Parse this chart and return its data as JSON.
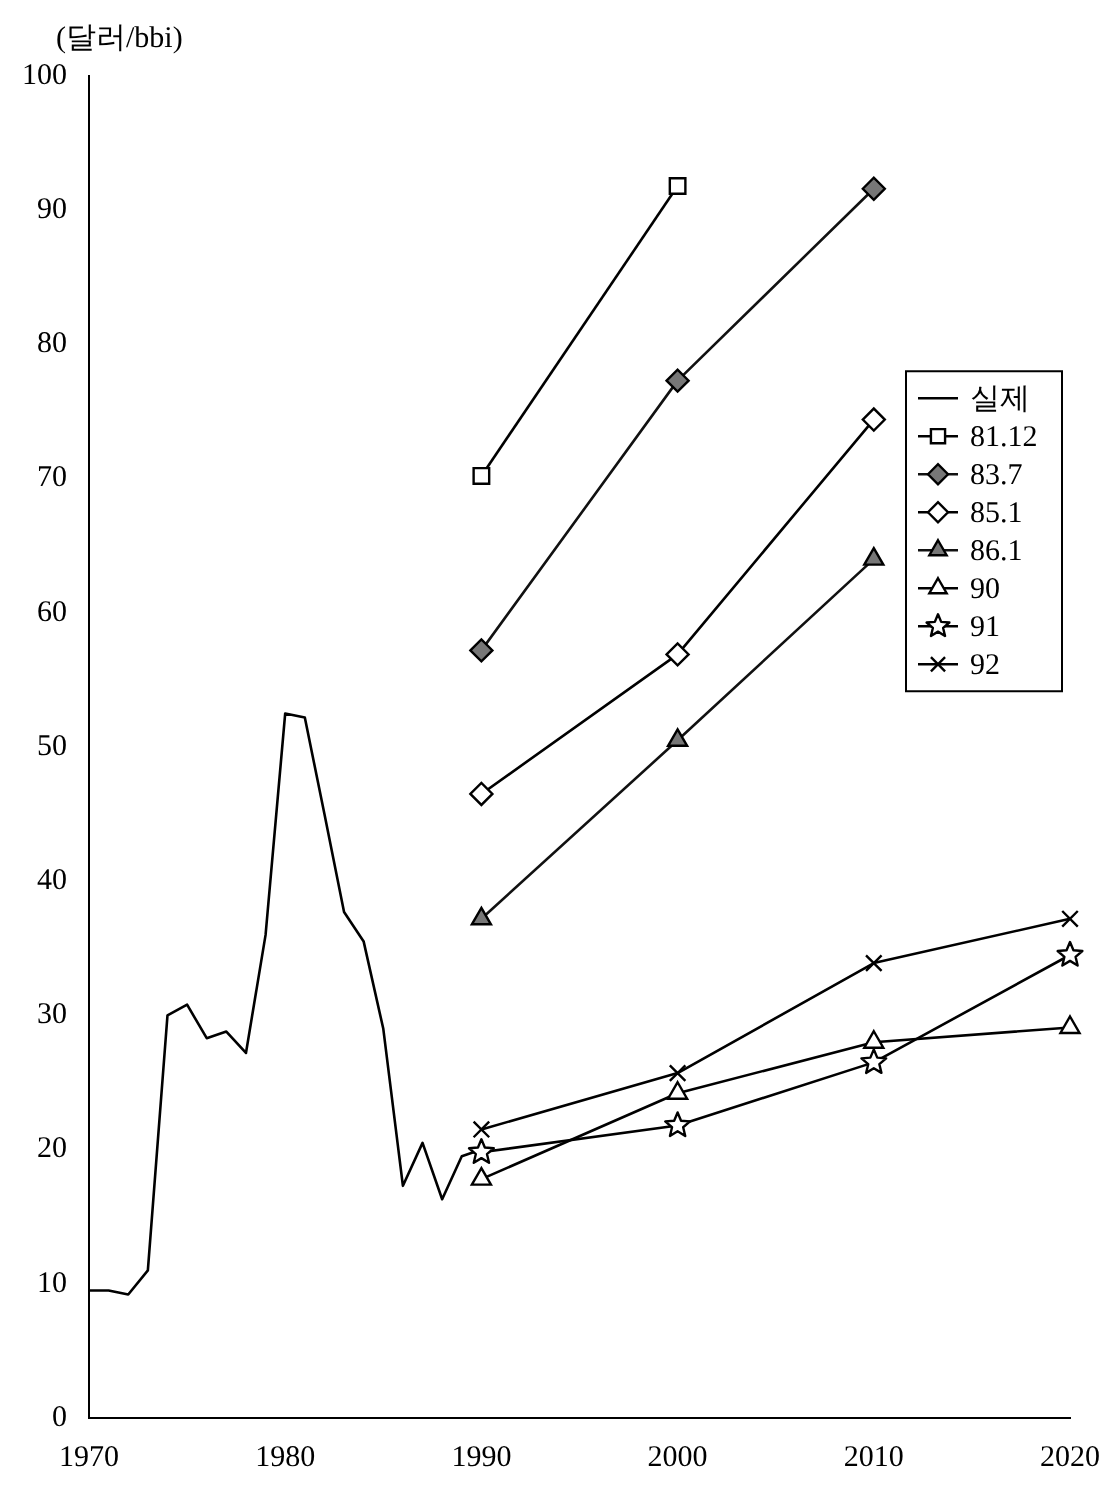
{
  "chart_data": {
    "type": "line",
    "ylabel": "(달러/bbi)",
    "xlim": [
      1970,
      2020
    ],
    "xticks": [
      1970,
      1980,
      1990,
      2000,
      2010,
      2020
    ],
    "ylim": [
      0,
      100
    ],
    "yticks": [
      0,
      10,
      20,
      30,
      40,
      50,
      60,
      70,
      80,
      90,
      100
    ],
    "legend": "right",
    "grid": false,
    "series": [
      {
        "name": "실제",
        "color": "#000000",
        "marker": "none",
        "x": [
          1970,
          1971,
          1972,
          1973,
          1974,
          1975,
          1976,
          1977,
          1978,
          1979,
          1980,
          1981,
          1982,
          1983,
          1984,
          1985,
          1986,
          1987,
          1988,
          1989,
          1990
        ],
        "values": [
          9.5,
          9.5,
          9.2,
          11,
          30,
          30.8,
          28.3,
          28.8,
          27.2,
          36,
          52.5,
          52.2,
          45,
          37.7,
          35.5,
          29,
          17.3,
          20.5,
          16.3,
          19.5,
          20
        ]
      },
      {
        "name": "81.12",
        "color": "#000000",
        "marker": "square",
        "x": [
          1990,
          2000
        ],
        "values": [
          70.2,
          91.8
        ]
      },
      {
        "name": "83.7",
        "color": "#777777",
        "marker": "diamond",
        "x": [
          1990,
          2000,
          2010
        ],
        "values": [
          57.2,
          77.3,
          91.6
        ]
      },
      {
        "name": "85.1",
        "color": "#000000",
        "marker": "diamond",
        "x": [
          1990,
          2000,
          2010
        ],
        "values": [
          46.5,
          56.9,
          74.4
        ]
      },
      {
        "name": "86.1",
        "color": "#777777",
        "marker": "triangle",
        "x": [
          1990,
          2000,
          2010
        ],
        "values": [
          37.2,
          50.5,
          64.0
        ]
      },
      {
        "name": "90",
        "color": "#000000",
        "marker": "triangle",
        "x": [
          1990,
          2000,
          2010,
          2020
        ],
        "values": [
          17.8,
          24.2,
          28.0,
          29.1
        ]
      },
      {
        "name": "91",
        "color": "#000000",
        "marker": "star",
        "x": [
          1990,
          2000,
          2010,
          2020
        ],
        "values": [
          19.8,
          21.8,
          26.5,
          34.5
        ]
      },
      {
        "name": "92",
        "color": "#000000",
        "marker": "cross",
        "x": [
          1990,
          2000,
          2010,
          2020
        ],
        "values": [
          21.5,
          25.7,
          33.9,
          37.2
        ]
      }
    ]
  }
}
